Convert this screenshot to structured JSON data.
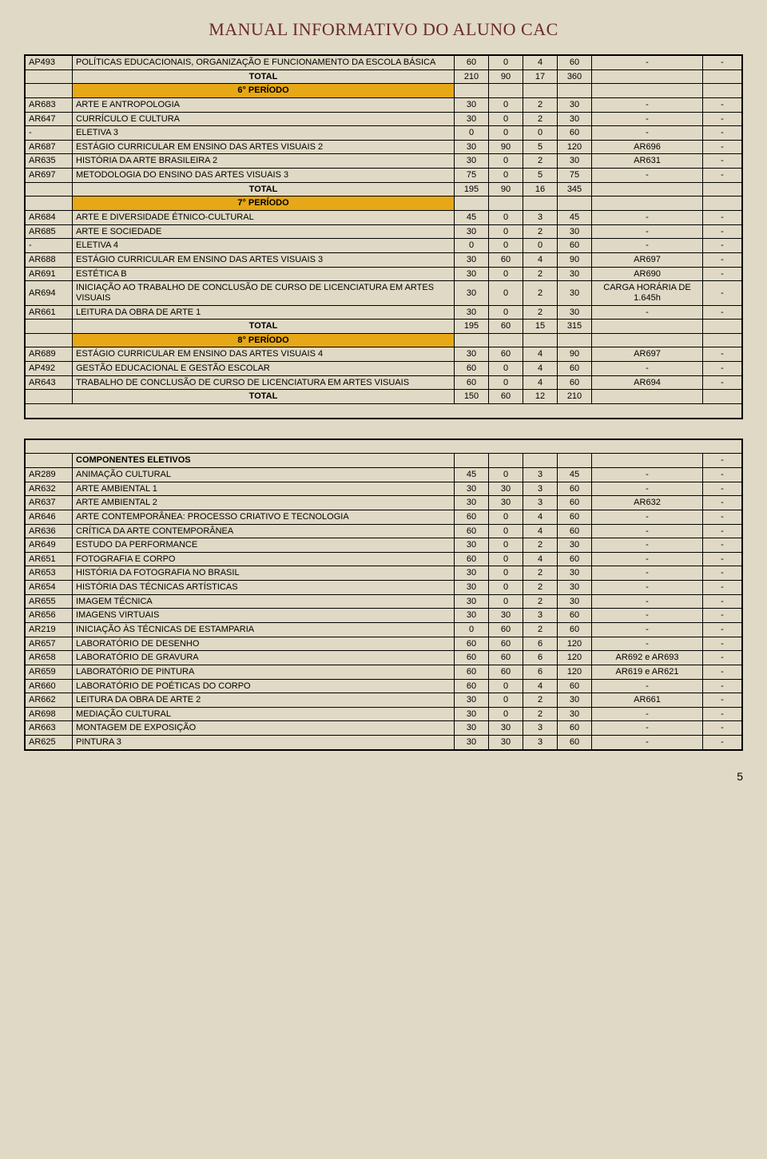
{
  "title": "MANUAL INFORMATIVO DO ALUNO CAC",
  "page_number": "5",
  "colors": {
    "page_bg": "#e0d9c5",
    "period_bg": "#e6a817",
    "title_color": "#6b2a2a",
    "border": "#000000"
  },
  "table1": {
    "rows": [
      {
        "type": "row",
        "code": "AP493",
        "desc": "POLÍTICAS EDUCACIONAIS, ORGANIZAÇÃO E FUNCIONAMENTO DA ESCOLA BÁSICA",
        "c1": "60",
        "c2": "0",
        "c3": "4",
        "c4": "60",
        "req": "-",
        "r2": "-"
      },
      {
        "type": "total",
        "desc": "TOTAL",
        "c1": "210",
        "c2": "90",
        "c3": "17",
        "c4": "360",
        "req": "",
        "r2": ""
      },
      {
        "type": "period",
        "desc": "6° PERÍODO"
      },
      {
        "type": "row",
        "code": "AR683",
        "desc": "ARTE E ANTROPOLOGIA",
        "c1": "30",
        "c2": "0",
        "c3": "2",
        "c4": "30",
        "req": "-",
        "r2": "-"
      },
      {
        "type": "row",
        "code": "AR647",
        "desc": "CURRÍCULO E CULTURA",
        "c1": "30",
        "c2": "0",
        "c3": "2",
        "c4": "30",
        "req": "-",
        "r2": "-"
      },
      {
        "type": "row",
        "code": "-",
        "desc": "ELETIVA 3",
        "c1": "0",
        "c2": "0",
        "c3": "0",
        "c4": "60",
        "req": "-",
        "r2": "-"
      },
      {
        "type": "row",
        "code": "AR687",
        "desc": "ESTÁGIO CURRICULAR EM ENSINO DAS ARTES VISUAIS 2",
        "c1": "30",
        "c2": "90",
        "c3": "5",
        "c4": "120",
        "req": "AR696",
        "r2": "-"
      },
      {
        "type": "row",
        "code": "AR635",
        "desc": "HISTÓRIA DA ARTE BRASILEIRA 2",
        "c1": "30",
        "c2": "0",
        "c3": "2",
        "c4": "30",
        "req": "AR631",
        "r2": "-"
      },
      {
        "type": "row",
        "code": "AR697",
        "desc": "METODOLOGIA DO ENSINO DAS ARTES VISUAIS 3",
        "c1": "75",
        "c2": "0",
        "c3": "5",
        "c4": "75",
        "req": "-",
        "r2": "-"
      },
      {
        "type": "total",
        "desc": "TOTAL",
        "c1": "195",
        "c2": "90",
        "c3": "16",
        "c4": "345",
        "req": "",
        "r2": ""
      },
      {
        "type": "period",
        "desc": "7° PERÍODO"
      },
      {
        "type": "row",
        "code": "AR684",
        "desc": "ARTE E DIVERSIDADE ÉTNICO-CULTURAL",
        "c1": "45",
        "c2": "0",
        "c3": "3",
        "c4": "45",
        "req": "-",
        "r2": "-"
      },
      {
        "type": "row",
        "code": "AR685",
        "desc": "ARTE E SOCIEDADE",
        "c1": "30",
        "c2": "0",
        "c3": "2",
        "c4": "30",
        "req": "-",
        "r2": "-"
      },
      {
        "type": "row",
        "code": "-",
        "desc": "ELETIVA 4",
        "c1": "0",
        "c2": "0",
        "c3": "0",
        "c4": "60",
        "req": "-",
        "r2": "-"
      },
      {
        "type": "row",
        "code": "AR688",
        "desc": "ESTÁGIO CURRICULAR EM ENSINO DAS ARTES VISUAIS 3",
        "c1": "30",
        "c2": "60",
        "c3": "4",
        "c4": "90",
        "req": "AR697",
        "r2": "-"
      },
      {
        "type": "row",
        "code": "AR691",
        "desc": "ESTÉTICA B",
        "c1": "30",
        "c2": "0",
        "c3": "2",
        "c4": "30",
        "req": "AR690",
        "r2": "-"
      },
      {
        "type": "row",
        "code": "AR694",
        "desc": "INICIAÇÃO AO TRABALHO DE CONCLUSÃO DE CURSO DE LICENCIATURA EM ARTES VISUAIS",
        "c1": "30",
        "c2": "0",
        "c3": "2",
        "c4": "30",
        "req": "CARGA HORÁRIA DE 1.645h",
        "r2": "-"
      },
      {
        "type": "row",
        "code": "AR661",
        "desc": "LEITURA DA OBRA DE ARTE 1",
        "c1": "30",
        "c2": "0",
        "c3": "2",
        "c4": "30",
        "req": "-",
        "r2": "-"
      },
      {
        "type": "total",
        "desc": "TOTAL",
        "c1": "195",
        "c2": "60",
        "c3": "15",
        "c4": "315",
        "req": "",
        "r2": ""
      },
      {
        "type": "period",
        "desc": "8° PERÍODO"
      },
      {
        "type": "row",
        "code": "AR689",
        "desc": "ESTÁGIO CURRICULAR EM ENSINO DAS ARTES VISUAIS 4",
        "c1": "30",
        "c2": "60",
        "c3": "4",
        "c4": "90",
        "req": "AR697",
        "r2": "-"
      },
      {
        "type": "row",
        "code": "AP492",
        "desc": "GESTÃO EDUCACIONAL E GESTÃO ESCOLAR",
        "c1": "60",
        "c2": "0",
        "c3": "4",
        "c4": "60",
        "req": "-",
        "r2": "-"
      },
      {
        "type": "row",
        "code": "AR643",
        "desc": "TRABALHO DE CONCLUSÃO DE CURSO DE LICENCIATURA EM ARTES VISUAIS",
        "c1": "60",
        "c2": "0",
        "c3": "4",
        "c4": "60",
        "req": "AR694",
        "r2": "-"
      },
      {
        "type": "total",
        "desc": "TOTAL",
        "c1": "150",
        "c2": "60",
        "c3": "12",
        "c4": "210",
        "req": "",
        "r2": ""
      },
      {
        "type": "blank"
      }
    ]
  },
  "table2": {
    "header": {
      "desc": "COMPONENTES ELETIVOS",
      "r2": "-"
    },
    "rows": [
      {
        "code": "AR289",
        "desc": "ANIMAÇÃO CULTURAL",
        "c1": "45",
        "c2": "0",
        "c3": "3",
        "c4": "45",
        "req": "-",
        "r2": "-"
      },
      {
        "code": "AR632",
        "desc": "ARTE AMBIENTAL 1",
        "c1": "30",
        "c2": "30",
        "c3": "3",
        "c4": "60",
        "req": "-",
        "r2": "-"
      },
      {
        "code": "AR637",
        "desc": "ARTE AMBIENTAL 2",
        "c1": "30",
        "c2": "30",
        "c3": "3",
        "c4": "60",
        "req": "AR632",
        "r2": "-"
      },
      {
        "code": "AR646",
        "desc": "ARTE CONTEMPORÂNEA: PROCESSO CRIATIVO E TECNOLOGIA",
        "c1": "60",
        "c2": "0",
        "c3": "4",
        "c4": "60",
        "req": "-",
        "r2": "-"
      },
      {
        "code": "AR636",
        "desc": "CRÍTICA DA ARTE CONTEMPORÂNEA",
        "c1": "60",
        "c2": "0",
        "c3": "4",
        "c4": "60",
        "req": "-",
        "r2": "-"
      },
      {
        "code": "AR649",
        "desc": "ESTUDO DA PERFORMANCE",
        "c1": "30",
        "c2": "0",
        "c3": "2",
        "c4": "30",
        "req": "-",
        "r2": "-"
      },
      {
        "code": "AR651",
        "desc": "FOTOGRAFIA E CORPO",
        "c1": "60",
        "c2": "0",
        "c3": "4",
        "c4": "60",
        "req": "-",
        "r2": "-"
      },
      {
        "code": "AR653",
        "desc": "HISTÓRIA DA FOTOGRAFIA NO BRASIL",
        "c1": "30",
        "c2": "0",
        "c3": "2",
        "c4": "30",
        "req": "-",
        "r2": "-"
      },
      {
        "code": "AR654",
        "desc": "HISTÓRIA DAS TÉCNICAS ARTÍSTICAS",
        "c1": "30",
        "c2": "0",
        "c3": "2",
        "c4": "30",
        "req": "-",
        "r2": "-"
      },
      {
        "code": "AR655",
        "desc": "IMAGEM TÉCNICA",
        "c1": "30",
        "c2": "0",
        "c3": "2",
        "c4": "30",
        "req": "-",
        "r2": "-"
      },
      {
        "code": "AR656",
        "desc": "IMAGENS VIRTUAIS",
        "c1": "30",
        "c2": "30",
        "c3": "3",
        "c4": "60",
        "req": "-",
        "r2": "-"
      },
      {
        "code": "AR219",
        "desc": "INICIAÇÃO ÀS TÉCNICAS DE ESTAMPARIA",
        "c1": "0",
        "c2": "60",
        "c3": "2",
        "c4": "60",
        "req": "-",
        "r2": "-"
      },
      {
        "code": "AR657",
        "desc": "LABORATÓRIO DE DESENHO",
        "c1": "60",
        "c2": "60",
        "c3": "6",
        "c4": "120",
        "req": "-",
        "r2": "-"
      },
      {
        "code": "AR658",
        "desc": "LABORATÓRIO DE GRAVURA",
        "c1": "60",
        "c2": "60",
        "c3": "6",
        "c4": "120",
        "req": "AR692 e AR693",
        "r2": "-"
      },
      {
        "code": "AR659",
        "desc": "LABORATÓRIO DE PINTURA",
        "c1": "60",
        "c2": "60",
        "c3": "6",
        "c4": "120",
        "req": "AR619 e AR621",
        "r2": "-"
      },
      {
        "code": "AR660",
        "desc": "LABORATÓRIO DE POÉTICAS DO CORPO",
        "c1": "60",
        "c2": "0",
        "c3": "4",
        "c4": "60",
        "req": "-",
        "r2": "-"
      },
      {
        "code": "AR662",
        "desc": "LEITURA DA OBRA DE ARTE 2",
        "c1": "30",
        "c2": "0",
        "c3": "2",
        "c4": "30",
        "req": "AR661",
        "r2": "-"
      },
      {
        "code": "AR698",
        "desc": "MEDIAÇÃO CULTURAL",
        "c1": "30",
        "c2": "0",
        "c3": "2",
        "c4": "30",
        "req": "-",
        "r2": "-"
      },
      {
        "code": "AR663",
        "desc": "MONTAGEM DE EXPOSIÇÃO",
        "c1": "30",
        "c2": "30",
        "c3": "3",
        "c4": "60",
        "req": "-",
        "r2": "-"
      },
      {
        "code": "AR625",
        "desc": "PINTURA 3",
        "c1": "30",
        "c2": "30",
        "c3": "3",
        "c4": "60",
        "req": "-",
        "r2": "-"
      }
    ]
  }
}
